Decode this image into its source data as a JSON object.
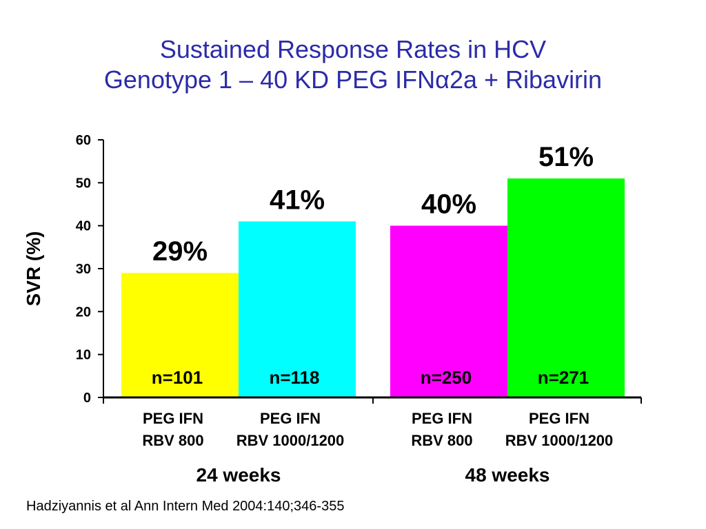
{
  "title": {
    "line1": "Sustained Response Rates in HCV",
    "line2": "Genotype 1 – 40 KD PEG IFNα2a + Ribavirin"
  },
  "citation": "Hadziyannis et al Ann Intern Med 2004:140;346-355",
  "chart_data": {
    "type": "bar",
    "title": "Sustained Response Rates in HCV Genotype 1 – 40 KD PEG IFNα2a + Ribavirin",
    "ylabel": "SVR (%)",
    "xlabel": "",
    "ylim": [
      0,
      60
    ],
    "yticks": [
      0,
      10,
      20,
      30,
      40,
      50,
      60
    ],
    "grid": false,
    "groups": [
      {
        "label": "24 weeks",
        "bars": [
          {
            "line1": "PEG IFN",
            "line2": "RBV 800",
            "value": 29,
            "value_label": "29%",
            "n_label": "n=101",
            "color": "#ffff00"
          },
          {
            "line1": "PEG IFN",
            "line2": "RBV 1000/1200",
            "value": 41,
            "value_label": "41%",
            "n_label": "n=118",
            "color": "#00ffff"
          }
        ]
      },
      {
        "label": "48 weeks",
        "bars": [
          {
            "line1": "PEG IFN",
            "line2": "RBV 800",
            "value": 40,
            "value_label": "40%",
            "n_label": "n=250",
            "color": "#ff00ff"
          },
          {
            "line1": "PEG IFN",
            "line2": "RBV 1000/1200",
            "value": 51,
            "value_label": "51%",
            "n_label": "n=271",
            "color": "#00ff00"
          }
        ]
      }
    ]
  }
}
